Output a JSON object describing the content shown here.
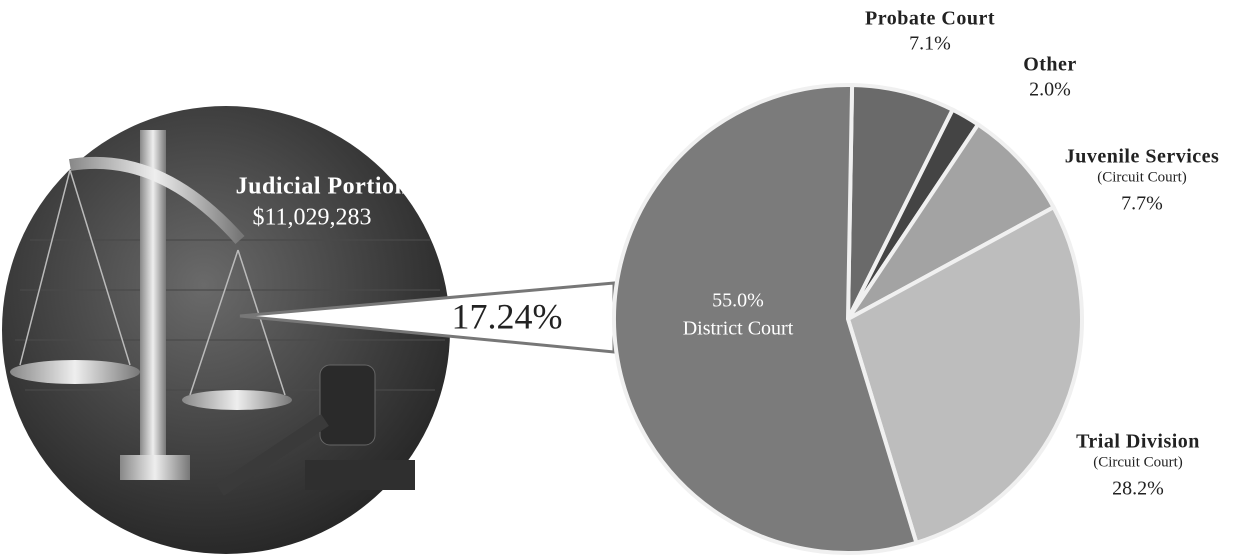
{
  "chart_data": {
    "type": "pie",
    "categories": [
      "Probate Court",
      "Other",
      "Juvenile Services",
      "Trial Division",
      "District Court"
    ],
    "category_notes": [
      null,
      null,
      "(Circuit Court)",
      "(Circuit Court)",
      null
    ],
    "values": [
      7.1,
      2.0,
      7.7,
      28.2,
      55.0
    ],
    "value_labels": [
      "7.1%",
      "2.0%",
      "7.7%",
      "28.2%",
      "55.0%"
    ],
    "colors": [
      "#6a6a6a",
      "#444444",
      "#a3a3a3",
      "#bdbdbd",
      "#7b7b7b"
    ],
    "annotations": {
      "portion_title": "Judicial Portion",
      "portion_amount": "$11,029,283",
      "portion_share": "17.24%"
    }
  }
}
